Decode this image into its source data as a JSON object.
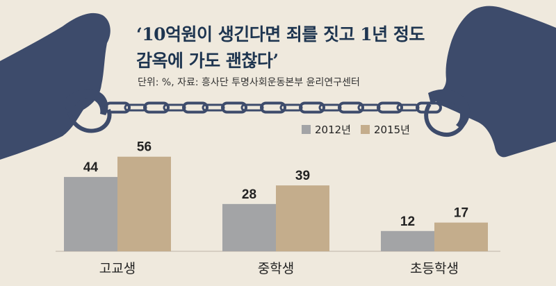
{
  "title_line1": "‘10억원이 생긴다면 죄를 짓고 1년 정도",
  "title_line2": "감옥에 가도 괜찮다’",
  "subtitle": "단위: %, 자료: 흥사단 투명사회운동본부 윤리연구센터",
  "colors": {
    "background": "#efe9dd",
    "silhouette": "#3d4b6b",
    "title": "#1e3550",
    "series_2012": "#a3a4a6",
    "series_2015": "#c4ad8c"
  },
  "chart_data": {
    "type": "bar",
    "categories": [
      "고교생",
      "중학생",
      "초등학생"
    ],
    "series": [
      {
        "name": "2012년",
        "values": [
          44,
          28,
          12
        ]
      },
      {
        "name": "2015년",
        "values": [
          56,
          39,
          17
        ]
      }
    ],
    "ylim": [
      0,
      60
    ],
    "unit": "%",
    "grid": false,
    "legend_position": "top-right",
    "data_labels": true
  }
}
